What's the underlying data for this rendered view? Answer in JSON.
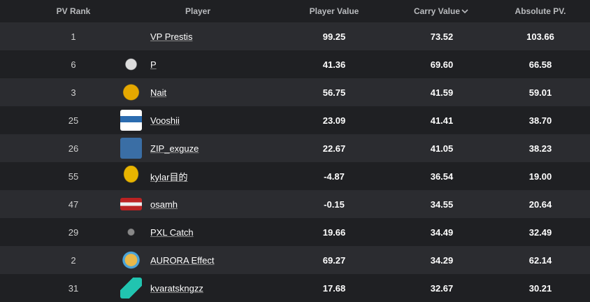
{
  "table": {
    "header": [
      "PV Rank",
      "Player",
      "Player Value",
      "Carry Value",
      "Absolute PV."
    ],
    "rows": [
      [
        "1",
        "VP Prestis",
        "99.25",
        "73.52",
        "103.66"
      ],
      [
        "6",
        "P",
        "41.36",
        "69.60",
        "66.58"
      ],
      [
        "3",
        "Nait",
        "56.75",
        "41.59",
        "59.01"
      ],
      [
        "25",
        "Vooshii",
        "23.09",
        "41.41",
        "38.70"
      ],
      [
        "26",
        "ZIP_exguze",
        "22.67",
        "41.05",
        "38.23"
      ],
      [
        "55",
        "kylar目的",
        "-4.87",
        "36.54",
        "19.00"
      ],
      [
        "47",
        "osamh",
        "-0.15",
        "34.55",
        "20.64"
      ],
      [
        "29",
        "PXL Catch",
        "19.66",
        "34.49",
        "32.49"
      ],
      [
        "2",
        "AURORA Effect",
        "69.27",
        "34.29",
        "62.14"
      ],
      [
        "31",
        "kvaratskngzz",
        "17.68",
        "32.67",
        "30.21"
      ]
    ]
  }
}
